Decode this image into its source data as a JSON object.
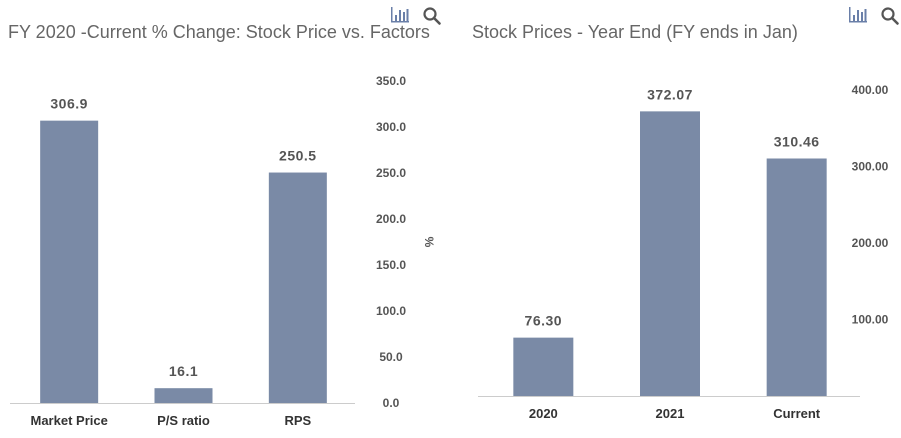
{
  "charts": [
    {
      "id": "left",
      "title": "FY 2020 -Current % Change: Stock Price vs. Factors",
      "toolbar": {
        "chart_icon": "bar-chart-icon",
        "search_icon": "search-icon"
      },
      "chart_data": {
        "type": "bar",
        "title": "FY 2020 -Current % Change: Stock Price vs. Factors",
        "categories": [
          "Market Price",
          "P/S ratio",
          "RPS"
        ],
        "values": [
          306.9,
          16.1,
          250.5
        ],
        "value_labels": [
          "306.9",
          "16.1",
          "250.5"
        ],
        "xlabel": "",
        "ylabel": "%",
        "ylim": [
          0,
          350
        ],
        "yticks": [
          0,
          50,
          100,
          150,
          200,
          250,
          300,
          350
        ],
        "ytick_labels": [
          "0.0",
          "50.0",
          "100.0",
          "150.0",
          "200.0",
          "250.0",
          "300.0",
          "350.0"
        ],
        "y_axis_side": "right",
        "bar_color": "#7a8aa6",
        "grid": false,
        "legend": "none"
      }
    },
    {
      "id": "right",
      "title": "Stock Prices - Year End (FY ends in Jan)",
      "toolbar": {
        "chart_icon": "bar-chart-icon",
        "search_icon": "search-icon"
      },
      "chart_data": {
        "type": "bar",
        "title": "Stock Prices - Year End (FY ends in Jan)",
        "categories": [
          "2020",
          "2021",
          "Current"
        ],
        "values": [
          76.3,
          372.07,
          310.46
        ],
        "value_labels": [
          "76.30",
          "372.07",
          "310.46"
        ],
        "xlabel": "",
        "ylabel": "",
        "ylim": [
          0,
          400
        ],
        "yticks": [
          100,
          200,
          300,
          400
        ],
        "ytick_labels": [
          "100.00",
          "200.00",
          "300.00",
          "400.00"
        ],
        "y_axis_side": "right",
        "bar_color": "#7a8aa6",
        "grid": false,
        "legend": "none"
      }
    }
  ]
}
